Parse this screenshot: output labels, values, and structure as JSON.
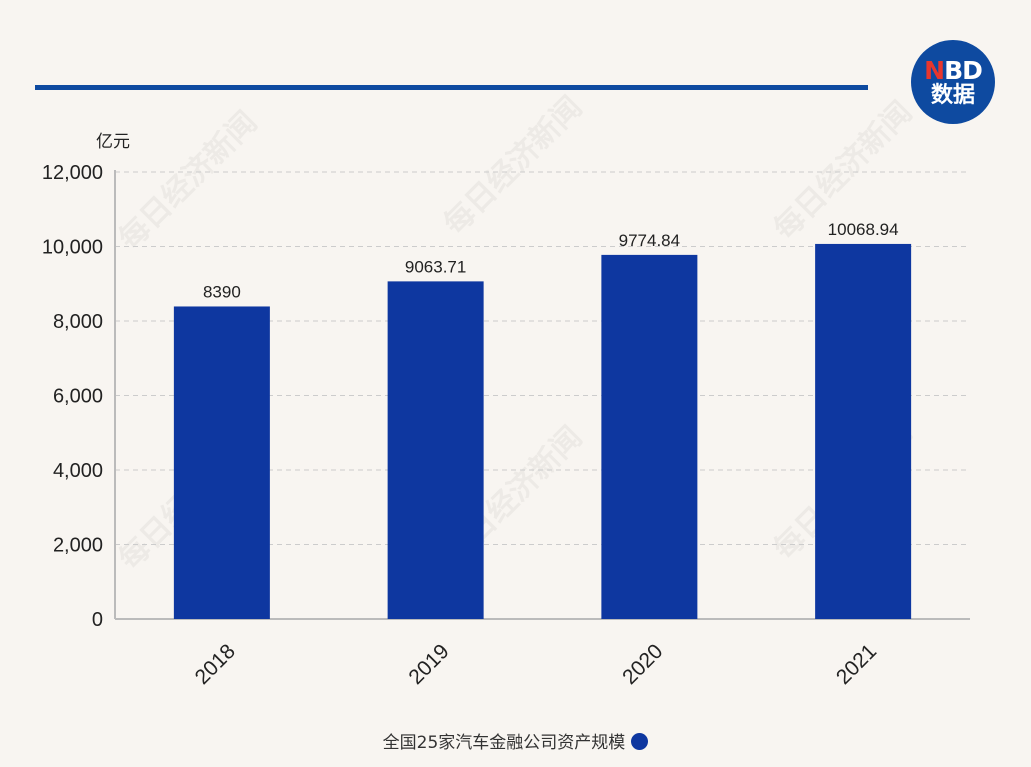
{
  "logo": {
    "letter_n": "N",
    "letters_bd": "BD",
    "line2": "数据"
  },
  "watermark": "每日经济新闻",
  "chart_data": {
    "type": "bar",
    "title": "",
    "xlabel": "",
    "ylabel": "亿元",
    "categories": [
      "2018",
      "2019",
      "2020",
      "2021"
    ],
    "series": [
      {
        "name": "全国25家汽车金融公司资产规模",
        "values": [
          8390,
          9063.71,
          9774.84,
          10068.94
        ],
        "labels": [
          "8390",
          "9063.71",
          "9774.84",
          "10068.94"
        ]
      }
    ],
    "ylim": [
      0,
      12000
    ],
    "yticks": [
      0,
      2000,
      4000,
      6000,
      8000,
      10000,
      12000
    ],
    "ytick_labels": [
      "0",
      "2,000",
      "4,000",
      "6,000",
      "8,000",
      "10,000",
      "12,000"
    ],
    "grid": true,
    "legend_position": "bottom",
    "colors": {
      "bar": "#0e37a0",
      "grid": "#cccccc",
      "axis": "#bbbbbb",
      "accent": "#0e4aa0"
    }
  }
}
